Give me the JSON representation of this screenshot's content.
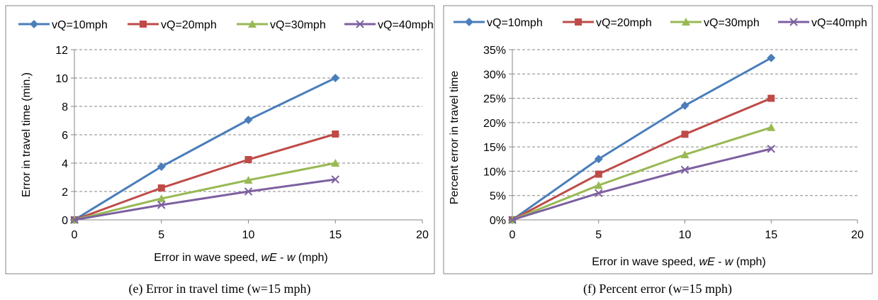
{
  "colors": {
    "series": [
      "#4a7ebb",
      "#be4b48",
      "#98b954",
      "#7d60a0"
    ],
    "grid": "#868686",
    "frame": "#868686"
  },
  "chart_data": [
    {
      "type": "line",
      "caption": "(e) Error in travel time (w=15 mph)",
      "xlabel_parts": [
        "Error in wave speed, ",
        "wE",
        " - ",
        "w",
        " (mph)"
      ],
      "ylabel": "Error in travel time (min.)",
      "x": [
        0,
        5,
        10,
        15
      ],
      "xlim": [
        0,
        20
      ],
      "xticks": [
        0,
        5,
        10,
        15,
        20
      ],
      "ylim": [
        0,
        12
      ],
      "yticks": [
        0,
        2,
        4,
        6,
        8,
        10,
        12
      ],
      "ytick_labels": [
        "0",
        "2",
        "4",
        "6",
        "8",
        "10",
        "12"
      ],
      "grid": "horizontal dashed",
      "legend": "top",
      "series": [
        {
          "name": "vQ=10mph",
          "marker": "diamond",
          "values": [
            0,
            3.75,
            7.05,
            10.0
          ]
        },
        {
          "name": "vQ=20mph",
          "marker": "square",
          "values": [
            0,
            2.25,
            4.25,
            6.05
          ]
        },
        {
          "name": "vQ=30mph",
          "marker": "triangle",
          "values": [
            0,
            1.5,
            2.8,
            4.0
          ]
        },
        {
          "name": "vQ=40mph",
          "marker": "x",
          "values": [
            0,
            1.05,
            2.0,
            2.85
          ]
        }
      ]
    },
    {
      "type": "line",
      "caption": "(f) Percent error (w=15 mph)",
      "xlabel_parts": [
        "Error in wave speed, ",
        "wE",
        " - ",
        "w",
        " (mph)"
      ],
      "ylabel": "Percent error in travel time",
      "x": [
        0,
        5,
        10,
        15
      ],
      "xlim": [
        0,
        20
      ],
      "xticks": [
        0,
        5,
        10,
        15,
        20
      ],
      "ylim": [
        0,
        35
      ],
      "yticks": [
        0,
        5,
        10,
        15,
        20,
        25,
        30,
        35
      ],
      "ytick_labels": [
        "0%",
        "5%",
        "10%",
        "15%",
        "20%",
        "25%",
        "30%",
        "35%"
      ],
      "grid": "horizontal dashed",
      "legend": "top",
      "series": [
        {
          "name": "vQ=10mph",
          "marker": "diamond",
          "values": [
            0,
            12.5,
            23.5,
            33.3
          ]
        },
        {
          "name": "vQ=20mph",
          "marker": "square",
          "values": [
            0,
            9.4,
            17.6,
            25.0
          ]
        },
        {
          "name": "vQ=30mph",
          "marker": "triangle",
          "values": [
            0,
            7.1,
            13.4,
            19.0
          ]
        },
        {
          "name": "vQ=40mph",
          "marker": "x",
          "values": [
            0,
            5.5,
            10.3,
            14.6
          ]
        }
      ]
    }
  ]
}
